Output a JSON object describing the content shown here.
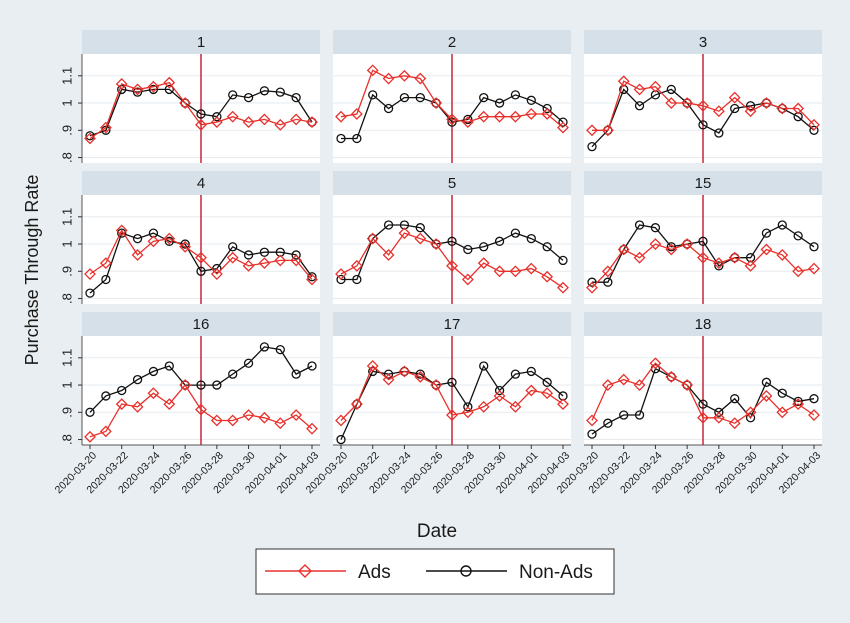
{
  "chart_data": {
    "type": "line",
    "ylabel": "Purchase Through Rate",
    "xlabel": "Date",
    "ylim": [
      0.78,
      1.18
    ],
    "y_ticks": [
      0.8,
      0.9,
      1.0,
      1.1
    ],
    "y_tick_labels": [
      ".8",
      ".9",
      "1",
      "1.1"
    ],
    "x_dates": [
      "2020-03-20",
      "2020-03-21",
      "2020-03-22",
      "2020-03-23",
      "2020-03-24",
      "2020-03-25",
      "2020-03-26",
      "2020-03-27",
      "2020-03-28",
      "2020-03-29",
      "2020-03-30",
      "2020-03-31",
      "2020-04-01",
      "2020-04-02",
      "2020-04-03"
    ],
    "x_tick_labels": [
      "2020-03-20",
      "2020-03-22",
      "2020-03-24",
      "2020-03-26",
      "2020-03-28",
      "2020-03-30",
      "2020-04-01",
      "2020-04-03"
    ],
    "event_line_date": "2020-03-27",
    "legend": {
      "position": "bottom",
      "entries": [
        {
          "name": "Ads",
          "color": "#e8302b",
          "marker": "diamond"
        },
        {
          "name": "Non-Ads",
          "color": "#111111",
          "marker": "circle"
        }
      ]
    },
    "colors": {
      "ads": "#e8302b",
      "non_ads": "#111111",
      "event_line": "#c0182b",
      "panel_header": "#d5e0e8",
      "background": "#e9eef2",
      "plot_area": "#ffffff"
    },
    "panels": [
      {
        "title": "1",
        "ads": [
          0.87,
          0.91,
          1.07,
          1.05,
          1.06,
          1.075,
          1.0,
          0.92,
          0.93,
          0.95,
          0.93,
          0.94,
          0.92,
          0.94,
          0.93
        ],
        "non_ads": [
          0.88,
          0.9,
          1.05,
          1.04,
          1.05,
          1.05,
          1.0,
          0.96,
          0.95,
          1.03,
          1.02,
          1.045,
          1.04,
          1.02,
          0.93
        ]
      },
      {
        "title": "2",
        "ads": [
          0.95,
          0.96,
          1.12,
          1.09,
          1.1,
          1.09,
          1.0,
          0.94,
          0.93,
          0.95,
          0.95,
          0.95,
          0.96,
          0.96,
          0.91
        ],
        "non_ads": [
          0.87,
          0.87,
          1.03,
          0.98,
          1.02,
          1.02,
          1.0,
          0.93,
          0.94,
          1.02,
          1.0,
          1.03,
          1.01,
          0.98,
          0.93
        ]
      },
      {
        "title": "3",
        "ads": [
          0.9,
          0.9,
          1.08,
          1.05,
          1.06,
          1.0,
          1.0,
          0.99,
          0.97,
          1.02,
          0.97,
          1.0,
          0.98,
          0.98,
          0.92
        ],
        "non_ads": [
          0.84,
          0.9,
          1.05,
          0.99,
          1.03,
          1.05,
          1.0,
          0.92,
          0.89,
          0.98,
          0.99,
          1.0,
          0.98,
          0.95,
          0.9
        ]
      },
      {
        "title": "4",
        "ads": [
          0.89,
          0.93,
          1.05,
          0.96,
          1.01,
          1.02,
          0.99,
          0.95,
          0.89,
          0.95,
          0.92,
          0.93,
          0.94,
          0.94,
          0.87
        ],
        "non_ads": [
          0.82,
          0.87,
          1.04,
          1.02,
          1.04,
          1.01,
          1.0,
          0.9,
          0.91,
          0.99,
          0.96,
          0.97,
          0.97,
          0.96,
          0.88
        ]
      },
      {
        "title": "5",
        "ads": [
          0.89,
          0.92,
          1.02,
          0.96,
          1.04,
          1.02,
          1.0,
          0.92,
          0.87,
          0.93,
          0.9,
          0.9,
          0.91,
          0.88,
          0.84
        ],
        "non_ads": [
          0.87,
          0.87,
          1.02,
          1.07,
          1.07,
          1.06,
          1.0,
          1.01,
          0.98,
          0.99,
          1.01,
          1.04,
          1.02,
          0.99,
          0.94
        ]
      },
      {
        "title": "15",
        "ads": [
          0.84,
          0.9,
          0.98,
          0.95,
          1.0,
          0.98,
          1.0,
          0.95,
          0.93,
          0.95,
          0.92,
          0.98,
          0.96,
          0.9,
          0.91
        ],
        "non_ads": [
          0.86,
          0.86,
          0.98,
          1.07,
          1.06,
          0.99,
          1.0,
          1.01,
          0.92,
          0.95,
          0.95,
          1.04,
          1.07,
          1.03,
          0.99
        ]
      },
      {
        "title": "16",
        "ads": [
          0.81,
          0.83,
          0.93,
          0.92,
          0.97,
          0.93,
          1.0,
          0.91,
          0.87,
          0.87,
          0.89,
          0.88,
          0.86,
          0.89,
          0.84
        ],
        "non_ads": [
          0.9,
          0.96,
          0.98,
          1.02,
          1.05,
          1.07,
          1.0,
          1.0,
          1.0,
          1.04,
          1.08,
          1.14,
          1.13,
          1.04,
          1.07
        ]
      },
      {
        "title": "17",
        "ads": [
          0.87,
          0.93,
          1.07,
          1.02,
          1.05,
          1.03,
          1.0,
          0.89,
          0.9,
          0.92,
          0.96,
          0.92,
          0.98,
          0.97,
          0.93
        ],
        "non_ads": [
          0.8,
          0.93,
          1.05,
          1.04,
          1.05,
          1.04,
          1.0,
          1.01,
          0.92,
          1.07,
          0.98,
          1.04,
          1.05,
          1.01,
          0.96
        ]
      },
      {
        "title": "18",
        "ads": [
          0.87,
          1.0,
          1.02,
          1.0,
          1.08,
          1.03,
          1.0,
          0.88,
          0.88,
          0.86,
          0.9,
          0.96,
          0.9,
          0.93,
          0.89
        ],
        "non_ads": [
          0.82,
          0.86,
          0.89,
          0.89,
          1.06,
          1.03,
          1.0,
          0.93,
          0.9,
          0.95,
          0.88,
          1.01,
          0.97,
          0.94,
          0.95
        ]
      }
    ]
  }
}
